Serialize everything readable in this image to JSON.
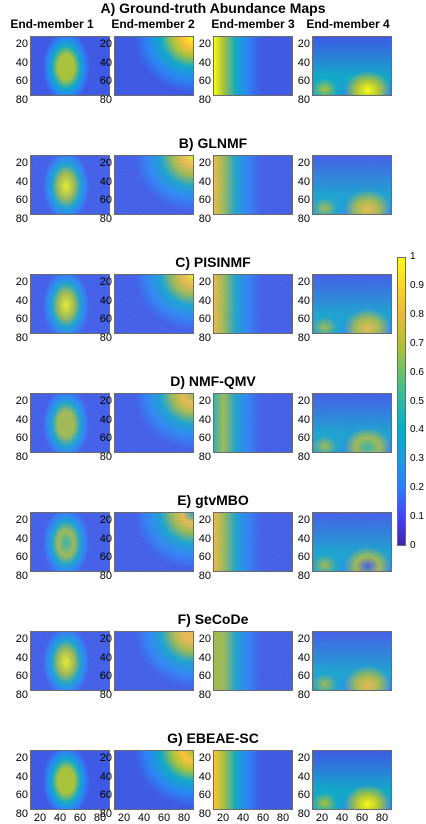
{
  "figure": {
    "main_title": "A) Ground-truth Abundance Maps",
    "column_titles": [
      "End-member 1",
      "End-member 2",
      "End-member 3",
      "End-member 4"
    ],
    "rows": [
      {
        "title": ""
      },
      {
        "title": "B) GLNMF"
      },
      {
        "title": "C) PISINMF"
      },
      {
        "title": "D) NMF-QMV"
      },
      {
        "title": "E) gtvMBO"
      },
      {
        "title": "F) SeCoDe"
      },
      {
        "title": "G) EBEAE-SC"
      }
    ],
    "y_ticks": [
      "20",
      "40",
      "60",
      "80"
    ],
    "x_ticks": [
      "20",
      "40",
      "60",
      "80"
    ],
    "colorbar_ticks": [
      "1",
      "0.9",
      "0.8",
      "0.7",
      "0.6",
      "0.5",
      "0.4",
      "0.3",
      "0.2",
      "0.1",
      "0"
    ],
    "colormap": "parula"
  }
}
